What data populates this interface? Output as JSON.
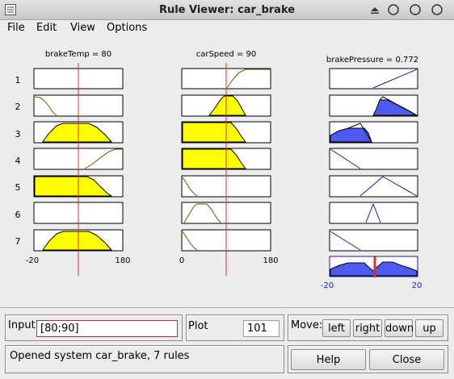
{
  "window": {
    "title": "Rule Viewer: car_brake"
  },
  "menu": [
    "File",
    "Edit",
    "View",
    "Options"
  ],
  "headers": {
    "input1": "brakeTemp = 80",
    "input2": "carSpeed = 90",
    "output": "brakePressure = 0.772"
  },
  "rule_numbers": [
    "1",
    "2",
    "3",
    "4",
    "5",
    "6",
    "7"
  ],
  "axes": {
    "input1": {
      "min": "-20",
      "max": "180"
    },
    "input2": {
      "min": "0",
      "max": "180"
    },
    "output": {
      "min": "-20",
      "max": "20"
    }
  },
  "input": {
    "label": "Input:",
    "value": "[80;90]"
  },
  "plot_points": {
    "label": "Plot points:",
    "value": "101"
  },
  "move": {
    "label": "Move:",
    "left": "left",
    "right": "right",
    "down": "down",
    "up": "up"
  },
  "status": "Opened system car_brake, 7 rules",
  "buttons": {
    "help": "Help",
    "close": "Close"
  },
  "colors": {
    "fill_input": "#ffff00",
    "fill_output": "#4f5bef",
    "crosshair": "#e0302a",
    "mf_line": "#606000"
  }
}
